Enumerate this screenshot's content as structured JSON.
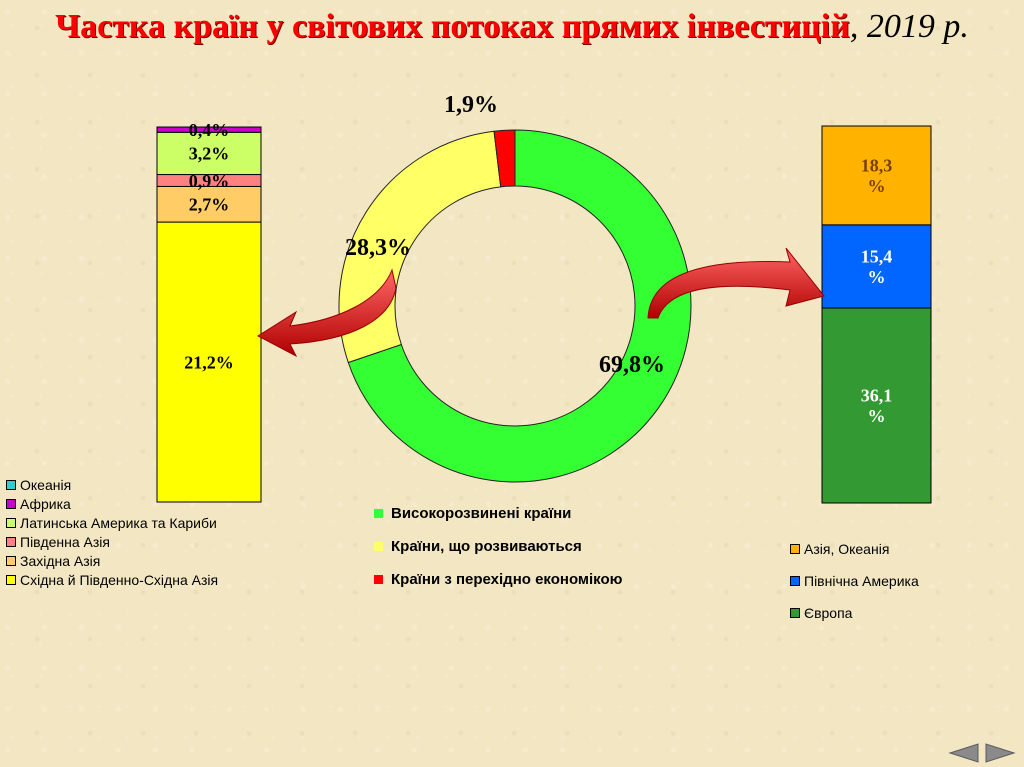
{
  "title": {
    "main": "Частка країн у світових потоках прямих інвестицій",
    "suffix": ", 2019 р."
  },
  "chart_data": [
    {
      "type": "pie",
      "style": "donut",
      "series": [
        {
          "name": "Високорозвинені країни",
          "value": 69.8,
          "label": "69,8%",
          "color": "#33ff33"
        },
        {
          "name": "Країни, що розвиваються",
          "value": 28.3,
          "label": "28,3%",
          "color": "#ffff66"
        },
        {
          "name": "Країни з перехідно економікою",
          "value": 1.9,
          "label": "1,9%",
          "color": "#ff0000"
        }
      ]
    },
    {
      "type": "bar",
      "stacked": true,
      "description_of": "Країни, що розвиваються",
      "series": [
        {
          "name": "Східна й Південно-Східна Азія",
          "value": 21.2,
          "label": "21,2%",
          "color": "#ffff00"
        },
        {
          "name": "Західна Азія",
          "value": 2.7,
          "label": "2,7%",
          "color": "#ffcc66"
        },
        {
          "name": "Південна Азія",
          "value": 0.9,
          "label": "0,9%",
          "color": "#ff8080"
        },
        {
          "name": "Латинська Америка та Кариби",
          "value": 3.2,
          "label": "3,2%",
          "color": "#ccff66"
        },
        {
          "name": "Африка",
          "value": 0.4,
          "label": "0,4%",
          "color": "#cc00cc"
        },
        {
          "name": "Океанія",
          "value": 0,
          "label": "",
          "color": "#33cccc"
        }
      ]
    },
    {
      "type": "bar",
      "stacked": true,
      "description_of": "Високорозвинені країни",
      "series": [
        {
          "name": "Європа",
          "value": 36.1,
          "label": "36,1 %",
          "color": "#339933"
        },
        {
          "name": "Північна Америка",
          "value": 15.4,
          "label": "15,4 %",
          "color": "#0066ff"
        },
        {
          "name": "Азія, Океанія",
          "value": 18.3,
          "label": "18,3 %",
          "color": "#ffb300"
        }
      ]
    }
  ],
  "legend_left": [
    {
      "label": "Океанія",
      "color": "#33cccc"
    },
    {
      "label": "Африка",
      "color": "#cc00cc"
    },
    {
      "label": "Латинська Америка та Кариби",
      "color": "#ccff66"
    },
    {
      "label": "Південна Азія",
      "color": "#ff8080"
    },
    {
      "label": "Західна Азія",
      "color": "#ffcc66"
    },
    {
      "label": "Східна й Південно-Східна Азія",
      "color": "#ffff00"
    }
  ],
  "legend_center": [
    {
      "label": "Високорозвинені країни",
      "color": "#33ff33"
    },
    {
      "label": "Країни, що розвиваються",
      "color": "#ffff66"
    },
    {
      "label": "Країни з перехідно економікою",
      "color": "#ff0000"
    }
  ],
  "legend_right": [
    {
      "label": "Азія, Океанія",
      "color": "#ffb300"
    },
    {
      "label": "Північна Америка",
      "color": "#0066ff"
    },
    {
      "label": "Європа",
      "color": "#339933"
    }
  ],
  "nav": {
    "prev_icon": "arrow-left-icon",
    "next_icon": "arrow-right-icon"
  }
}
